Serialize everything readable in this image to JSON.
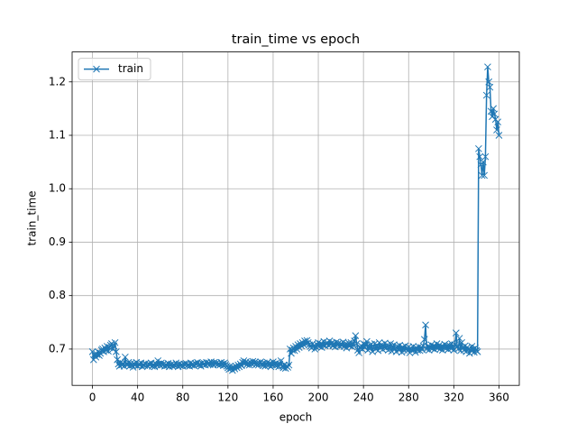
{
  "chart_data": {
    "type": "line",
    "title": "train_time vs epoch",
    "xlabel": "epoch",
    "ylabel": "train_time",
    "xlim": [
      -18,
      378
    ],
    "xticks": [
      0,
      40,
      80,
      120,
      160,
      200,
      240,
      280,
      320,
      360
    ],
    "ylim": [
      0.632,
      1.256
    ],
    "yticks": [
      0.7,
      0.8,
      0.9,
      {
        "value": 1,
        "label": "1.0"
      },
      1.1,
      1.2
    ],
    "grid": true,
    "legend": "upper left",
    "x": [
      0,
      1,
      2,
      3,
      4,
      5,
      6,
      7,
      8,
      9,
      10,
      11,
      12,
      13,
      14,
      15,
      16,
      17,
      18,
      19,
      20,
      21,
      22,
      23,
      24,
      25,
      26,
      27,
      28,
      29,
      30,
      31,
      32,
      33,
      34,
      35,
      36,
      37,
      38,
      39,
      40,
      41,
      42,
      43,
      44,
      45,
      46,
      47,
      48,
      49,
      50,
      51,
      52,
      53,
      54,
      55,
      56,
      57,
      58,
      59,
      60,
      61,
      62,
      63,
      64,
      65,
      66,
      67,
      68,
      69,
      70,
      71,
      72,
      73,
      74,
      75,
      76,
      77,
      78,
      79,
      80,
      81,
      82,
      83,
      84,
      85,
      86,
      87,
      88,
      89,
      90,
      91,
      92,
      93,
      94,
      95,
      96,
      97,
      98,
      99,
      100,
      101,
      102,
      103,
      104,
      105,
      106,
      107,
      108,
      109,
      110,
      111,
      112,
      113,
      114,
      115,
      116,
      117,
      118,
      119,
      120,
      121,
      122,
      123,
      124,
      125,
      126,
      127,
      128,
      129,
      130,
      131,
      132,
      133,
      134,
      135,
      136,
      137,
      138,
      139,
      140,
      141,
      142,
      143,
      144,
      145,
      146,
      147,
      148,
      149,
      150,
      151,
      152,
      153,
      154,
      155,
      156,
      157,
      158,
      159,
      160,
      161,
      162,
      163,
      164,
      165,
      166,
      167,
      168,
      169,
      170,
      171,
      172,
      173,
      174,
      175,
      176,
      177,
      178,
      179,
      180,
      181,
      182,
      183,
      184,
      185,
      186,
      187,
      188,
      189,
      190,
      191,
      192,
      193,
      194,
      195,
      196,
      197,
      198,
      199,
      200,
      201,
      202,
      203,
      204,
      205,
      206,
      207,
      208,
      209,
      210,
      211,
      212,
      213,
      214,
      215,
      216,
      217,
      218,
      219,
      220,
      221,
      222,
      223,
      224,
      225,
      226,
      227,
      228,
      229,
      230,
      231,
      232,
      233,
      234,
      235,
      236,
      237,
      238,
      239,
      240,
      241,
      242,
      243,
      244,
      245,
      246,
      247,
      248,
      249,
      250,
      251,
      252,
      253,
      254,
      255,
      256,
      257,
      258,
      259,
      260,
      261,
      262,
      263,
      264,
      265,
      266,
      267,
      268,
      269,
      270,
      271,
      272,
      273,
      274,
      275,
      276,
      277,
      278,
      279,
      280,
      281,
      282,
      283,
      284,
      285,
      286,
      287,
      288,
      289,
      290,
      291,
      292,
      293,
      294,
      295,
      296,
      297,
      298,
      299,
      300,
      301,
      302,
      303,
      304,
      305,
      306,
      307,
      308,
      309,
      310,
      311,
      312,
      313,
      314,
      315,
      316,
      317,
      318,
      319,
      320,
      321,
      322,
      323,
      324,
      325,
      326,
      327,
      328,
      329,
      330,
      331,
      332,
      333,
      334,
      335,
      336,
      337,
      338,
      339,
      340,
      341,
      342,
      343,
      344,
      345,
      346,
      347,
      348,
      349,
      350,
      351,
      352,
      353,
      354,
      355,
      356,
      357,
      358,
      359,
      360
    ],
    "series": [
      {
        "name": "train",
        "color": "#1f77b4",
        "values": [
          0.695,
          0.68,
          0.69,
          0.685,
          0.69,
          0.695,
          0.688,
          0.692,
          0.698,
          0.7,
          0.695,
          0.702,
          0.698,
          0.705,
          0.696,
          0.703,
          0.707,
          0.71,
          0.7,
          0.706,
          0.712,
          0.695,
          0.68,
          0.672,
          0.668,
          0.675,
          0.67,
          0.673,
          0.668,
          0.685,
          0.672,
          0.67,
          0.675,
          0.668,
          0.673,
          0.67,
          0.666,
          0.672,
          0.67,
          0.675,
          0.668,
          0.672,
          0.67,
          0.674,
          0.667,
          0.671,
          0.669,
          0.673,
          0.67,
          0.668,
          0.672,
          0.67,
          0.674,
          0.668,
          0.671,
          0.667,
          0.673,
          0.67,
          0.678,
          0.672,
          0.669,
          0.674,
          0.67,
          0.672,
          0.668,
          0.671,
          0.669,
          0.673,
          0.667,
          0.67,
          0.672,
          0.668,
          0.671,
          0.669,
          0.674,
          0.67,
          0.667,
          0.672,
          0.669,
          0.671,
          0.668,
          0.672,
          0.67,
          0.673,
          0.669,
          0.671,
          0.668,
          0.674,
          0.67,
          0.672,
          0.669,
          0.673,
          0.671,
          0.675,
          0.67,
          0.672,
          0.668,
          0.674,
          0.671,
          0.673,
          0.67,
          0.675,
          0.672,
          0.674,
          0.671,
          0.676,
          0.673,
          0.67,
          0.675,
          0.672,
          0.674,
          0.671,
          0.673,
          0.67,
          0.675,
          0.672,
          0.669,
          0.674,
          0.671,
          0.668,
          0.665,
          0.662,
          0.668,
          0.664,
          0.66,
          0.666,
          0.663,
          0.668,
          0.665,
          0.67,
          0.667,
          0.672,
          0.669,
          0.675,
          0.678,
          0.673,
          0.676,
          0.671,
          0.674,
          0.67,
          0.675,
          0.672,
          0.677,
          0.673,
          0.676,
          0.671,
          0.674,
          0.67,
          0.673,
          0.676,
          0.672,
          0.669,
          0.674,
          0.668,
          0.671,
          0.675,
          0.67,
          0.673,
          0.667,
          0.671,
          0.676,
          0.672,
          0.669,
          0.674,
          0.67,
          0.667,
          0.672,
          0.678,
          0.668,
          0.665,
          0.67,
          0.664,
          0.668,
          0.666,
          0.67,
          0.7,
          0.692,
          0.698,
          0.702,
          0.697,
          0.705,
          0.7,
          0.708,
          0.703,
          0.71,
          0.706,
          0.712,
          0.708,
          0.715,
          0.71,
          0.716,
          0.712,
          0.708,
          0.705,
          0.702,
          0.71,
          0.706,
          0.7,
          0.704,
          0.708,
          0.712,
          0.705,
          0.71,
          0.703,
          0.708,
          0.714,
          0.706,
          0.71,
          0.712,
          0.707,
          0.715,
          0.709,
          0.712,
          0.706,
          0.71,
          0.704,
          0.713,
          0.708,
          0.711,
          0.705,
          0.71,
          0.707,
          0.713,
          0.705,
          0.709,
          0.702,
          0.708,
          0.711,
          0.706,
          0.712,
          0.704,
          0.709,
          0.715,
          0.725,
          0.71,
          0.698,
          0.693,
          0.702,
          0.706,
          0.7,
          0.71,
          0.703,
          0.708,
          0.714,
          0.698,
          0.706,
          0.701,
          0.709,
          0.695,
          0.704,
          0.71,
          0.7,
          0.706,
          0.697,
          0.712,
          0.703,
          0.708,
          0.699,
          0.705,
          0.711,
          0.702,
          0.707,
          0.698,
          0.704,
          0.71,
          0.696,
          0.703,
          0.708,
          0.7,
          0.695,
          0.705,
          0.699,
          0.707,
          0.701,
          0.694,
          0.703,
          0.698,
          0.706,
          0.7,
          0.697,
          0.704,
          0.693,
          0.701,
          0.697,
          0.705,
          0.699,
          0.694,
          0.702,
          0.698,
          0.704,
          0.697,
          0.703,
          0.699,
          0.706,
          0.718,
          0.745,
          0.7,
          0.705,
          0.698,
          0.703,
          0.708,
          0.701,
          0.706,
          0.699,
          0.704,
          0.71,
          0.702,
          0.707,
          0.7,
          0.705,
          0.698,
          0.704,
          0.709,
          0.701,
          0.706,
          0.699,
          0.707,
          0.702,
          0.71,
          0.703,
          0.698,
          0.708,
          0.73,
          0.705,
          0.7,
          0.72,
          0.697,
          0.712,
          0.703,
          0.698,
          0.706,
          0.695,
          0.703,
          0.7,
          0.692,
          0.698,
          0.705,
          0.699,
          0.694,
          0.702,
          0.697,
          0.695,
          1.075,
          1.06,
          1.045,
          1.025,
          1.05,
          1.025,
          1.06,
          1.175,
          1.228,
          1.2,
          1.19,
          1.145,
          1.135,
          1.15,
          1.14,
          1.13,
          1.11,
          1.125,
          1.1
        ]
      }
    ]
  }
}
